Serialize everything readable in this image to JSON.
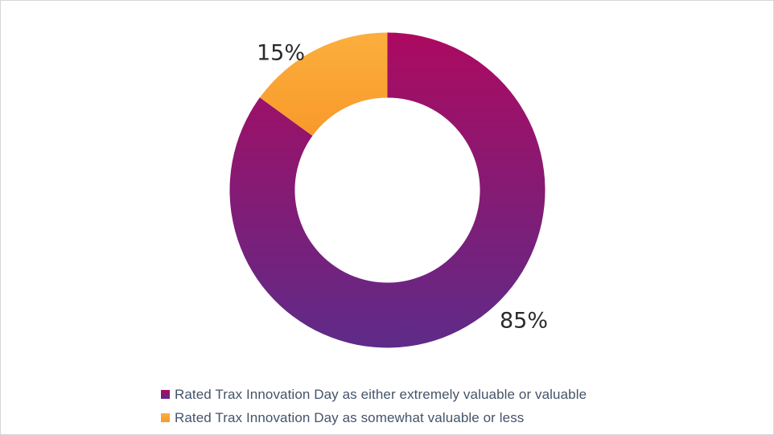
{
  "chart_data": {
    "type": "donut",
    "title": "",
    "unit": "%",
    "direction": "clockwise",
    "start_angle_deg": 0,
    "hole_ratio": 0.587,
    "legend_position": "bottom",
    "grid": false,
    "background": "#FFFFFF",
    "canvas_border_color": "#D7D7D7",
    "data_label_color": "#2A2A2A",
    "legend_text_color": "#44546A",
    "series": [
      {
        "name": "Rated Trax Innovation Day as either extremely valuable or valuable",
        "value": 85,
        "label": "85%",
        "gradient": [
          "#AC0A60",
          "#5E2B88"
        ]
      },
      {
        "name": "Rated Trax Innovation Day as somewhat valuable or less",
        "value": 15,
        "label": "15%",
        "gradient": [
          "#FBAF3E",
          "#F8992A"
        ]
      }
    ]
  }
}
